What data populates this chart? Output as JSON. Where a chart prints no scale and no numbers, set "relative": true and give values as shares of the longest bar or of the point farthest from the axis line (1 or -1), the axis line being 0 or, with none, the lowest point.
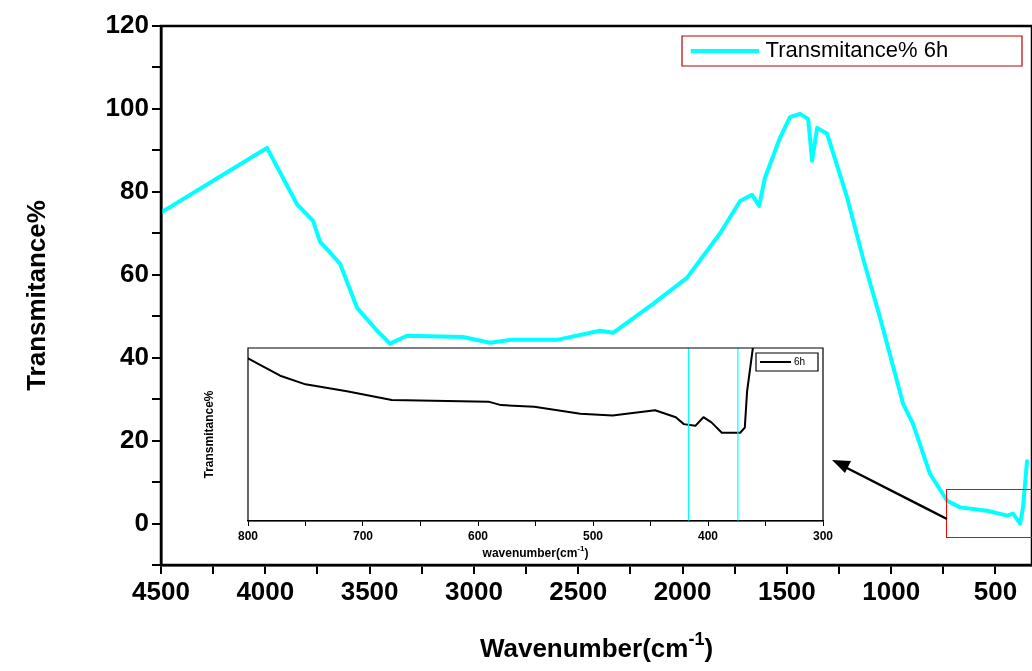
{
  "chart_data": [
    {
      "type": "line",
      "xlabel": "Wavenumber(cm$^{-1}$)",
      "ylabel": "Transmitance%",
      "x": [
        4500,
        3992,
        3848,
        3771,
        3738,
        3642,
        3560,
        3464,
        3402,
        3321,
        3052,
        2923,
        2827,
        2602,
        2396,
        2333,
        2141,
        1978,
        1820,
        1724,
        1667,
        1633,
        1605,
        1533,
        1485,
        1437,
        1398,
        1379,
        1355,
        1307,
        1211,
        1135,
        1053,
        943,
        895,
        814,
        732,
        670,
        540,
        444,
        416,
        382,
        368,
        349
      ],
      "series": [
        {
          "name": "Transmitance% 6h",
          "color": "#00ffff",
          "values": [
            75,
            90.6,
            77,
            73,
            68,
            62.7,
            52,
            46.5,
            43.4,
            45.3,
            45,
            43.6,
            44.3,
            44.3,
            46.5,
            46,
            53,
            59.3,
            70,
            77.8,
            79.3,
            76.6,
            83.4,
            93,
            98,
            98.8,
            97.6,
            87.5,
            95.4,
            94,
            78.6,
            64,
            49.6,
            28.9,
            24,
            12,
            5.5,
            3.9,
            3.1,
            1.9,
            2.4,
            0,
            3.9,
            15
          ]
        }
      ],
      "xlim": [
        4500,
        325
      ],
      "xticks": [
        4500,
        {
          "value": 4250,
          "label": null
        },
        4000,
        {
          "value": 3750,
          "label": null
        },
        3500,
        {
          "value": 3250,
          "label": null
        },
        3000,
        {
          "value": 2750,
          "label": null
        },
        2500,
        {
          "value": 2250,
          "label": null
        },
        2000,
        {
          "value": 1750,
          "label": null
        },
        1500,
        {
          "value": 1250,
          "label": null
        },
        1000,
        {
          "value": 750,
          "label": null
        },
        500
      ],
      "ylim": [
        -10,
        120
      ],
      "yticks": [
        {
          "value": -10,
          "label": null
        },
        0,
        {
          "value": 10,
          "label": null
        },
        20,
        {
          "value": 30,
          "label": null
        },
        40,
        {
          "value": 50,
          "label": null
        },
        60,
        {
          "value": 70,
          "label": null
        },
        80,
        {
          "value": 90,
          "label": null
        },
        100,
        {
          "value": 110,
          "label": null
        },
        120
      ],
      "grid": false,
      "legend": "top right",
      "marker": "none",
      "line_style": "solid"
    },
    {
      "type": "line",
      "xlabel": "wavenumber(cm$^{-1}$)",
      "ylabel": "Transmitance%",
      "relative": true,
      "x": [
        800,
        772,
        750,
        714,
        675,
        591,
        580,
        551,
        511,
        483,
        446,
        428,
        421,
        411,
        404,
        397,
        388,
        372,
        368,
        366,
        361
      ],
      "series": [
        {
          "name": "6h",
          "color": "#000000",
          "values": [
            0.94,
            0.84,
            0.79,
            0.75,
            0.7,
            0.69,
            0.67,
            0.66,
            0.62,
            0.61,
            0.64,
            0.6,
            0.56,
            0.55,
            0.6,
            0.57,
            0.51,
            0.51,
            0.54,
            0.75,
            1
          ]
        }
      ],
      "xlim": [
        800,
        300
      ],
      "xticks": [
        800,
        {
          "value": 750,
          "label": null
        },
        700,
        {
          "value": 650,
          "label": null
        },
        600,
        {
          "value": 550,
          "label": null
        },
        500,
        {
          "value": 450,
          "label": null
        },
        400,
        {
          "value": 350,
          "label": null
        },
        300
      ],
      "ref_lines": [
        {
          "axis": "x",
          "value": 417,
          "color": "#00ffff"
        },
        {
          "axis": "x",
          "value": 374,
          "color": "#00ffff"
        }
      ],
      "grid": false,
      "legend": "top right",
      "marker": "none",
      "line_style": "solid"
    }
  ]
}
